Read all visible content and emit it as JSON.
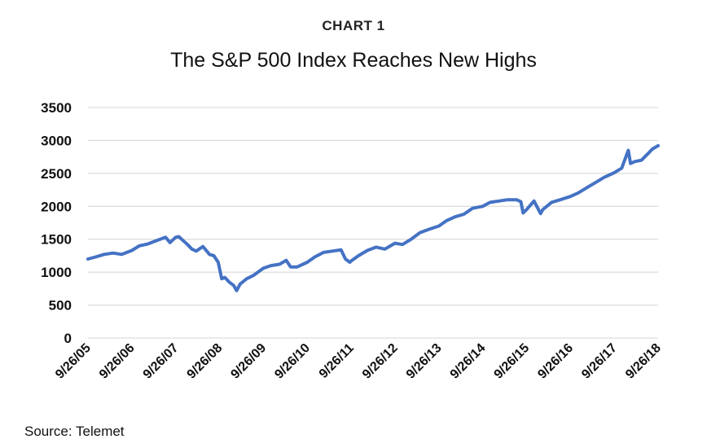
{
  "chart_data": {
    "type": "line",
    "label": "CHART 1",
    "title": "The S&P 500 Index Reaches New Highs",
    "source": "Source:  Telemet",
    "colors": {
      "series": "#4472c4",
      "grid": "#d4d4d4"
    },
    "grid": true,
    "legend": "none",
    "ylim": [
      0,
      3500
    ],
    "yticks": [
      0,
      500,
      1000,
      1500,
      2000,
      2500,
      3000,
      3500
    ],
    "xlim": [
      2005.73,
      2018.73
    ],
    "xticks": [
      {
        "x": 2005.73,
        "label": "9/26/05"
      },
      {
        "x": 2006.73,
        "label": "9/26/06"
      },
      {
        "x": 2007.73,
        "label": "9/26/07"
      },
      {
        "x": 2008.73,
        "label": "9/26/08"
      },
      {
        "x": 2009.73,
        "label": "9/26/09"
      },
      {
        "x": 2010.73,
        "label": "9/26/10"
      },
      {
        "x": 2011.73,
        "label": "9/26/11"
      },
      {
        "x": 2012.73,
        "label": "9/26/12"
      },
      {
        "x": 2013.73,
        "label": "9/26/13"
      },
      {
        "x": 2014.73,
        "label": "9/26/14"
      },
      {
        "x": 2015.73,
        "label": "9/26/15"
      },
      {
        "x": 2016.73,
        "label": "9/26/16"
      },
      {
        "x": 2017.73,
        "label": "9/26/17"
      },
      {
        "x": 2018.73,
        "label": "9/26/18"
      }
    ],
    "series": [
      {
        "x": [
          2005.73,
          2005.9,
          2006.1,
          2006.3,
          2006.5,
          2006.73,
          2006.9,
          2007.1,
          2007.3,
          2007.5,
          2007.6,
          2007.73,
          2007.8,
          2007.9,
          2008.0,
          2008.1,
          2008.2,
          2008.35,
          2008.5,
          2008.6,
          2008.7,
          2008.78,
          2008.85,
          2008.95,
          2009.05,
          2009.12,
          2009.2,
          2009.35,
          2009.5,
          2009.73,
          2009.9,
          2010.1,
          2010.25,
          2010.35,
          2010.5,
          2010.73,
          2010.9,
          2011.1,
          2011.3,
          2011.5,
          2011.6,
          2011.7,
          2011.73,
          2011.9,
          2012.1,
          2012.3,
          2012.5,
          2012.73,
          2012.9,
          2013.1,
          2013.3,
          2013.5,
          2013.73,
          2013.9,
          2014.1,
          2014.3,
          2014.5,
          2014.73,
          2014.9,
          2015.1,
          2015.3,
          2015.5,
          2015.6,
          2015.65,
          2015.73,
          2015.9,
          2016.05,
          2016.1,
          2016.3,
          2016.5,
          2016.73,
          2016.9,
          2017.1,
          2017.3,
          2017.5,
          2017.73,
          2017.9,
          2018.05,
          2018.1,
          2018.2,
          2018.35,
          2018.5,
          2018.6,
          2018.73
        ],
        "values": [
          1200,
          1230,
          1270,
          1290,
          1270,
          1330,
          1400,
          1430,
          1480,
          1530,
          1450,
          1530,
          1540,
          1480,
          1420,
          1350,
          1320,
          1390,
          1270,
          1250,
          1150,
          900,
          920,
          850,
          800,
          720,
          820,
          900,
          950,
          1060,
          1100,
          1120,
          1180,
          1080,
          1080,
          1150,
          1230,
          1300,
          1320,
          1340,
          1200,
          1150,
          1170,
          1250,
          1330,
          1380,
          1350,
          1440,
          1420,
          1500,
          1600,
          1650,
          1700,
          1780,
          1840,
          1880,
          1970,
          2000,
          2060,
          2080,
          2100,
          2100,
          2070,
          1900,
          1950,
          2080,
          1890,
          1950,
          2060,
          2100,
          2150,
          2200,
          2280,
          2360,
          2440,
          2510,
          2580,
          2850,
          2650,
          2680,
          2700,
          2800,
          2870,
          2920
        ]
      }
    ]
  }
}
